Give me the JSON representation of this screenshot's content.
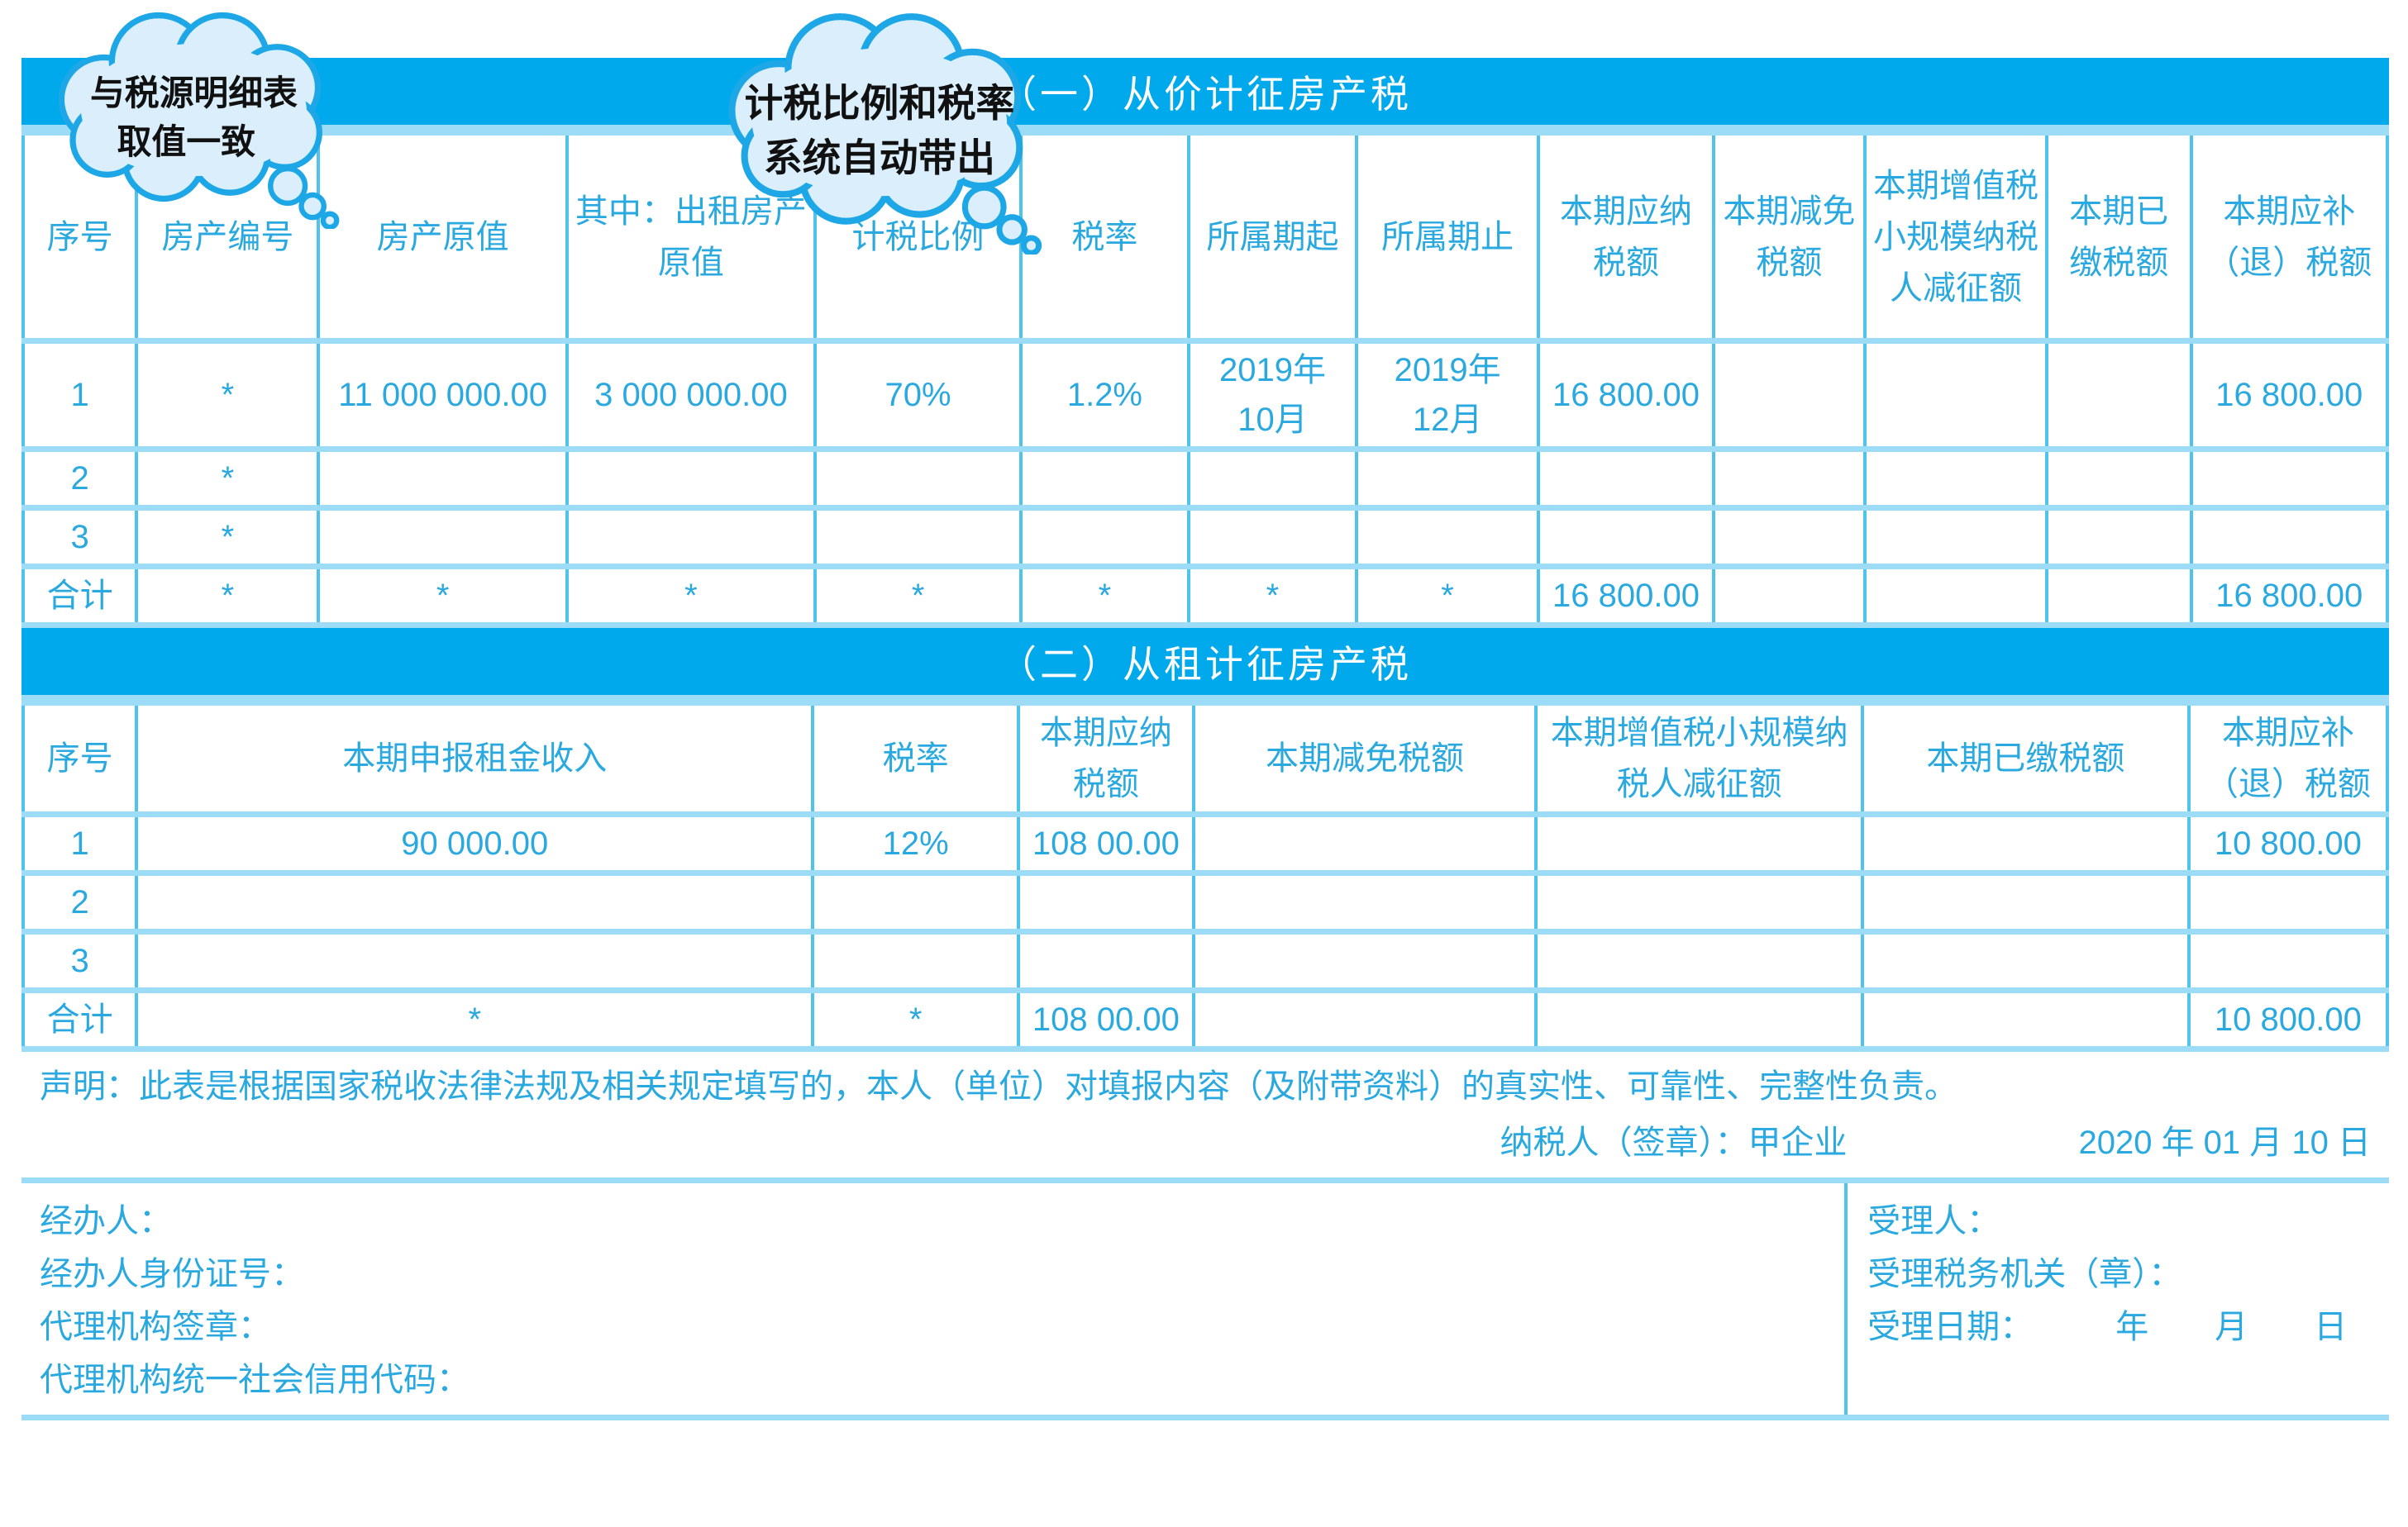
{
  "colors": {
    "section_bar_blue": "#00a9ec",
    "grid_vertical_line": "#4ec3ee",
    "grid_horizontal_line": "#9ddcf6",
    "table_text_blue": "#2aa9e0",
    "cloud_fill": "#daeffb",
    "cloud_stroke": "#1ea7e6",
    "bar_title_text": "#ffffff"
  },
  "callout1": {
    "line1": "与税源明细表",
    "line2": "取值一致"
  },
  "callout2": {
    "line1": "计税比例和税率",
    "line2": "系统自动带出"
  },
  "section1": {
    "title": "（一）从价计征房产税",
    "columns": [
      "序号",
      "房产编号",
      "房产原值",
      "其中：出租房产原值",
      "计税比例",
      "税率",
      "所属期起",
      "所属期止",
      "本期应纳税额",
      "本期减免税额",
      "本期增值税小规模纳税人减征额",
      "本期已缴税额",
      "本期应补（退）税额"
    ],
    "rows": [
      [
        "1",
        "*",
        "11 000 000.00",
        "3 000 000.00",
        "70%",
        "1.2%",
        "2019年\n10月",
        "2019年\n12月",
        "16 800.00",
        "",
        "",
        "",
        "16 800.00"
      ],
      [
        "2",
        "*",
        "",
        "",
        "",
        "",
        "",
        "",
        "",
        "",
        "",
        "",
        ""
      ],
      [
        "3",
        "*",
        "",
        "",
        "",
        "",
        "",
        "",
        "",
        "",
        "",
        "",
        ""
      ],
      [
        "合计",
        "*",
        "*",
        "*",
        "*",
        "*",
        "*",
        "*",
        "16 800.00",
        "",
        "",
        "",
        "16 800.00"
      ]
    ]
  },
  "section2": {
    "title": "（二）从租计征房产税",
    "columns": [
      "序号",
      "本期申报租金收入",
      "税率",
      "本期应纳税额",
      "本期减免税额",
      "本期增值税小规模纳税人减征额",
      "本期已缴税额",
      "本期应补（退）税额"
    ],
    "rows": [
      [
        "1",
        "90 000.00",
        "12%",
        "108 00.00",
        "",
        "",
        "",
        "10 800.00"
      ],
      [
        "2",
        "",
        "",
        "",
        "",
        "",
        "",
        ""
      ],
      [
        "3",
        "",
        "",
        "",
        "",
        "",
        "",
        ""
      ],
      [
        "合计",
        "*",
        "*",
        "108 00.00",
        "",
        "",
        "",
        "10 800.00"
      ]
    ]
  },
  "declaration": {
    "text": "声明：此表是根据国家税收法律法规及相关规定填写的，本人（单位）对填报内容（及附带资料）的真实性、可靠性、完整性负责。",
    "signature": "纳税人（签章）：甲企业",
    "date": "2020 年 01 月 10 日"
  },
  "footer": {
    "left": [
      "经办人：",
      "经办人身份证号：",
      "代理机构签章：",
      "代理机构统一社会信用代码："
    ],
    "right": [
      "受理人：",
      "受理税务机关（章）：",
      "受理日期：　　　年　　月　　日"
    ]
  }
}
